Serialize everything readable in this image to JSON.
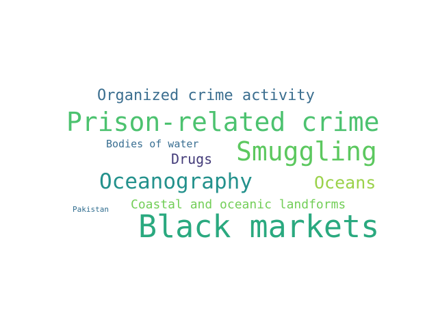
{
  "words": [
    {
      "id": "w1",
      "text": "Organized crime activity",
      "color": "#3b6e8f"
    },
    {
      "id": "w2",
      "text": "Prison-related crime",
      "color": "#4cc26f"
    },
    {
      "id": "w3",
      "text": "Bodies of water",
      "color": "#3a6f92"
    },
    {
      "id": "w4",
      "text": "Smuggling",
      "color": "#5cc85f"
    },
    {
      "id": "w5",
      "text": "Drugs",
      "color": "#433b79"
    },
    {
      "id": "w6",
      "text": "Oceanography",
      "color": "#23918c"
    },
    {
      "id": "w7",
      "text": "Oceans",
      "color": "#9bd24a"
    },
    {
      "id": "w8",
      "text": "Pakistan",
      "color": "#2f6c8e"
    },
    {
      "id": "w9",
      "text": "Coastal and oceanic landforms",
      "color": "#72ce57"
    },
    {
      "id": "w10",
      "text": "Black markets",
      "color": "#2aa97f"
    }
  ]
}
